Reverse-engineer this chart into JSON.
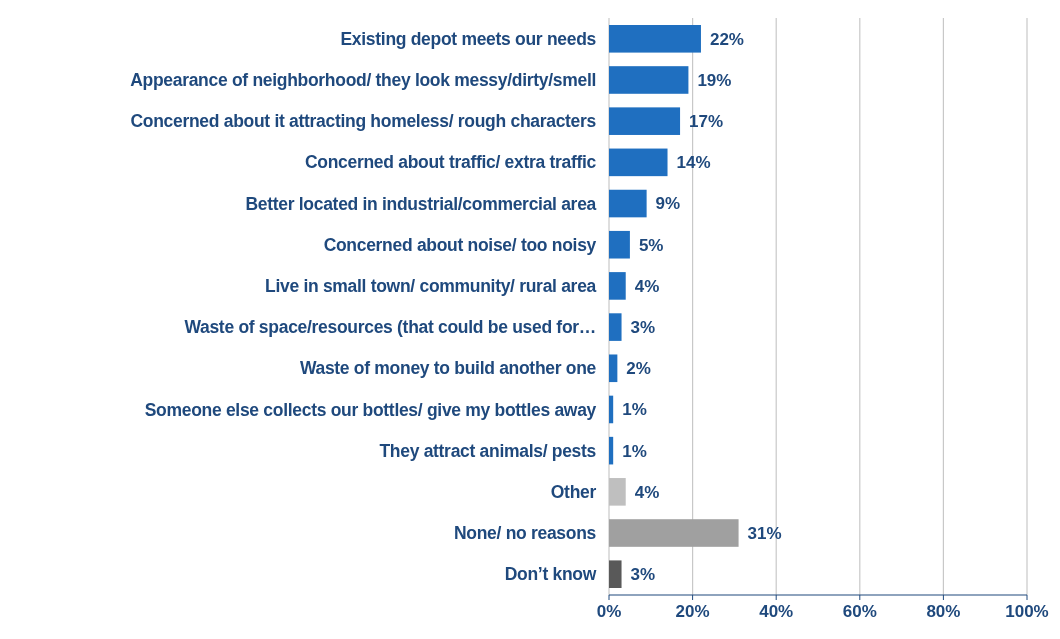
{
  "chart_data": {
    "type": "bar",
    "orientation": "horizontal",
    "categories": [
      "Existing depot meets our needs",
      "Appearance of neighborhood/ they look messy/dirty/smell",
      "Concerned about it attracting homeless/ rough characters",
      "Concerned about traffic/ extra traffic",
      "Better located in industrial/commercial area",
      "Concerned about noise/ too noisy",
      "Live in small town/ community/ rural area",
      "Waste of space/resources (that could be used for…",
      "Waste of money to build another one",
      "Someone else collects our bottles/ give my bottles away",
      "They attract animals/ pests",
      "Other",
      "None/ no reasons",
      "Don’t know"
    ],
    "values": [
      22,
      19,
      17,
      14,
      9,
      5,
      4,
      3,
      2,
      1,
      1,
      4,
      31,
      3
    ],
    "colors": [
      "#1f6fc0",
      "#1f6fc0",
      "#1f6fc0",
      "#1f6fc0",
      "#1f6fc0",
      "#1f6fc0",
      "#1f6fc0",
      "#1f6fc0",
      "#1f6fc0",
      "#1f6fc0",
      "#1f6fc0",
      "#bfbfbf",
      "#a0a0a0",
      "#595959"
    ],
    "value_labels": [
      "22%",
      "19%",
      "17%",
      "14%",
      "9%",
      "5%",
      "4%",
      "3%",
      "2%",
      "1%",
      "1%",
      "4%",
      "31%",
      "3%"
    ],
    "xlim": [
      0,
      100
    ],
    "xticks": [
      {
        "value": 0,
        "label": "0%"
      },
      {
        "value": 20,
        "label": "20%"
      },
      {
        "value": 40,
        "label": "40%"
      },
      {
        "value": 60,
        "label": "60%"
      },
      {
        "value": 80,
        "label": "80%"
      },
      {
        "value": 100,
        "label": "100%"
      }
    ],
    "grid": "x"
  }
}
